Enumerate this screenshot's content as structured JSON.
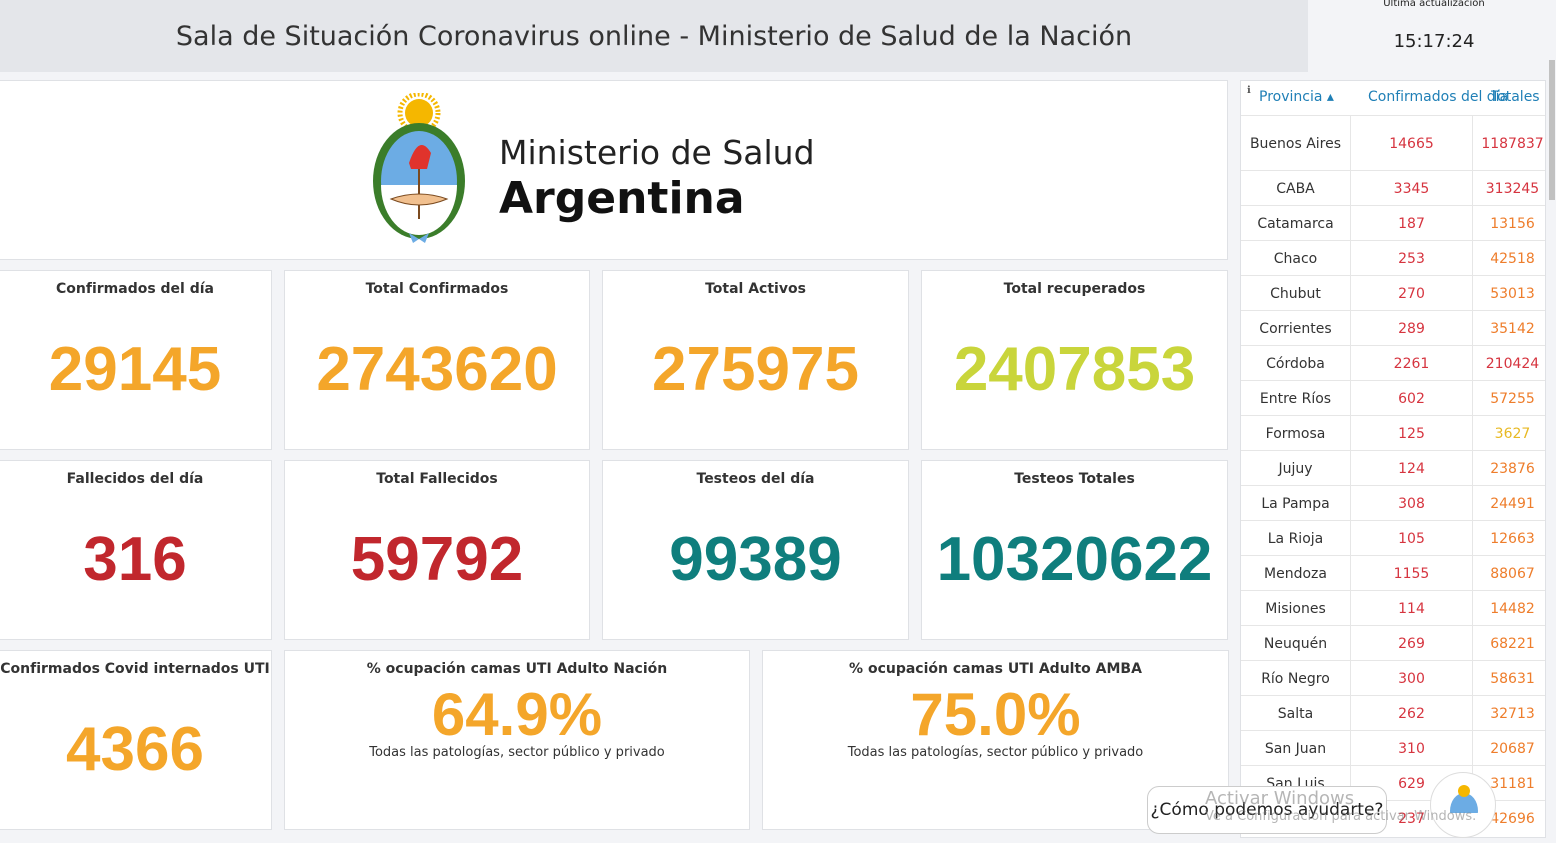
{
  "header": {
    "title": "Sala de Situación Coronavirus online - Ministerio de Salud de la Nación",
    "update_label": "Última actualización",
    "update_time": "15:17:24"
  },
  "logo": {
    "line1": "Ministerio de Salud",
    "line2": "Argentina"
  },
  "cards": [
    {
      "title": "Confirmados del día",
      "value": "29145",
      "color": "#f4a62a"
    },
    {
      "title": "Total Confirmados",
      "value": "2743620",
      "color": "#f4a62a"
    },
    {
      "title": "Total Activos",
      "value": "275975",
      "color": "#f4a62a"
    },
    {
      "title": "Total recuperados",
      "value": "2407853",
      "color": "#c9d53b"
    },
    {
      "title": "Fallecidos del día",
      "value": "316",
      "color": "#c1272d"
    },
    {
      "title": "Total Fallecidos",
      "value": "59792",
      "color": "#c1272d"
    },
    {
      "title": "Testeos del día",
      "value": "99389",
      "color": "#0f7e7d"
    },
    {
      "title": "Testeos Totales",
      "value": "10320622",
      "color": "#0f7e7d"
    },
    {
      "title": "Confirmados Covid internados UTI",
      "value": "4366",
      "color": "#f4a62a"
    },
    {
      "title": "% ocupación camas UTI Adulto Nación",
      "value": "64.9%",
      "note": "Todas las patologías, sector público y privado",
      "color": "#f4a62a"
    },
    {
      "title": "% ocupación camas UTI Adulto AMBA",
      "value": "75.0%",
      "note": "Todas las patologías, sector público y privado",
      "color": "#f4a62a"
    }
  ],
  "table": {
    "headers": [
      "Provincia",
      "Confirmados del día",
      "Totales"
    ],
    "rows": [
      [
        "Buenos Aires",
        "14665",
        "1187837"
      ],
      [
        "CABA",
        "3345",
        "313245"
      ],
      [
        "Catamarca",
        "187",
        "13156"
      ],
      [
        "Chaco",
        "253",
        "42518"
      ],
      [
        "Chubut",
        "270",
        "53013"
      ],
      [
        "Corrientes",
        "289",
        "35142"
      ],
      [
        "Córdoba",
        "2261",
        "210424"
      ],
      [
        "Entre Ríos",
        "602",
        "57255"
      ],
      [
        "Formosa",
        "125",
        "3627"
      ],
      [
        "Jujuy",
        "124",
        "23876"
      ],
      [
        "La Pampa",
        "308",
        "24491"
      ],
      [
        "La Rioja",
        "105",
        "12663"
      ],
      [
        "Mendoza",
        "1155",
        "88067"
      ],
      [
        "Misiones",
        "114",
        "14482"
      ],
      [
        "Neuquén",
        "269",
        "68221"
      ],
      [
        "Río Negro",
        "300",
        "58631"
      ],
      [
        "Salta",
        "262",
        "32713"
      ],
      [
        "San Juan",
        "310",
        "20687"
      ],
      [
        "San Luis",
        "629",
        "31181"
      ],
      [
        null,
        "237",
        "42696"
      ]
    ]
  },
  "chat": {
    "prompt": "¿Cómo podemos ayudarte?"
  },
  "watermark": {
    "line1": "Activar Windows",
    "line2": "Ve a Configuración para activar Windows."
  }
}
